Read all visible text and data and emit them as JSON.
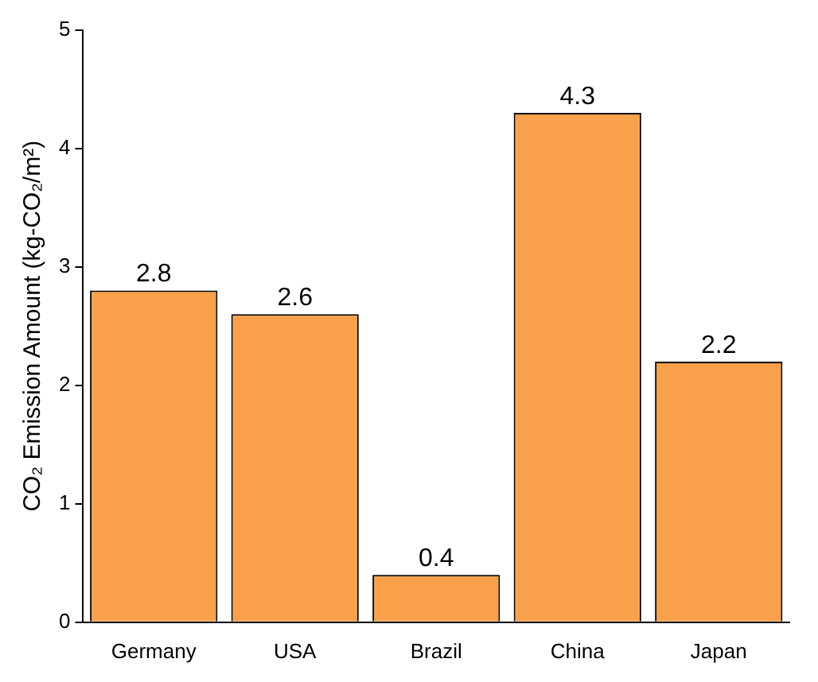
{
  "chart_data": {
    "type": "bar",
    "ylabel": "CO₂ Emission Amount (kg-CO₂/m²)",
    "categories": [
      "Germany",
      "USA",
      "Brazil",
      "China",
      "Japan"
    ],
    "values": [
      2.8,
      2.6,
      0.4,
      4.3,
      2.2
    ],
    "color": "#f9a04a",
    "ylim": [
      0,
      5
    ],
    "yticks": [
      0,
      1,
      2,
      3,
      4,
      5
    ],
    "grid": false,
    "legend": false,
    "data_labels": true
  }
}
